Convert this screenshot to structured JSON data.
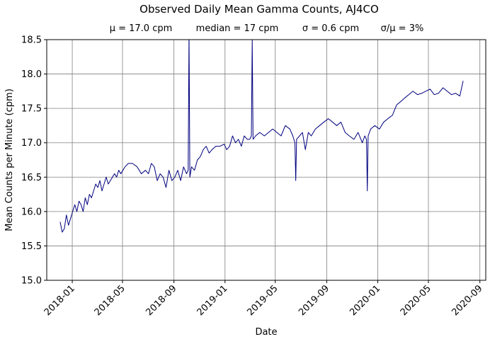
{
  "chart_data": {
    "type": "line",
    "title": "Observed Daily Mean Gamma Counts, AJ4CO",
    "subtitle": {
      "mean": "μ = 17.0 cpm",
      "median": "median = 17 cpm",
      "sigma": "σ = 0.6 cpm",
      "ratio": "σ/μ = 3%"
    },
    "xlabel": "Date",
    "ylabel": "Mean Counts per Minute (cpm)",
    "xlim": [
      "2017-11-01",
      "2020-09-15"
    ],
    "ylim": [
      15.0,
      18.5
    ],
    "x_ticks": [
      {
        "date": "2018-01-01",
        "label": "2018-01"
      },
      {
        "date": "2018-05-01",
        "label": "2018-05"
      },
      {
        "date": "2018-09-01",
        "label": "2018-09"
      },
      {
        "date": "2019-01-01",
        "label": "2019-01"
      },
      {
        "date": "2019-05-01",
        "label": "2019-05"
      },
      {
        "date": "2019-09-01",
        "label": "2019-09"
      },
      {
        "date": "2020-01-01",
        "label": "2020-01"
      },
      {
        "date": "2020-05-01",
        "label": "2020-05"
      },
      {
        "date": "2020-09-01",
        "label": "2020-09"
      }
    ],
    "y_ticks": [
      {
        "value": 15.0,
        "label": "15.0"
      },
      {
        "value": 15.5,
        "label": "15.5"
      },
      {
        "value": 16.0,
        "label": "16.0"
      },
      {
        "value": 16.5,
        "label": "16.5"
      },
      {
        "value": 17.0,
        "label": "17.0"
      },
      {
        "value": 17.5,
        "label": "17.5"
      },
      {
        "value": 18.0,
        "label": "18.0"
      },
      {
        "value": 18.5,
        "label": "18.5"
      }
    ],
    "grid": true,
    "line_color": "#00007f",
    "grid_color": "#808080",
    "series": [
      {
        "x": [
          "2017-12-03",
          "2017-12-08",
          "2017-12-13",
          "2017-12-18",
          "2017-12-23",
          "2017-12-28",
          "2018-01-02",
          "2018-01-07",
          "2018-01-12",
          "2018-01-17",
          "2018-01-22",
          "2018-01-27",
          "2018-02-01",
          "2018-02-06",
          "2018-02-11",
          "2018-02-16",
          "2018-02-21",
          "2018-02-26",
          "2018-03-03",
          "2018-03-08",
          "2018-03-13",
          "2018-03-18",
          "2018-03-23",
          "2018-03-28",
          "2018-04-02",
          "2018-04-07",
          "2018-04-12",
          "2018-04-17",
          "2018-04-22",
          "2018-04-27",
          "2018-05-02",
          "2018-05-07",
          "2018-05-15",
          "2018-05-25",
          "2018-06-05",
          "2018-06-15",
          "2018-06-25",
          "2018-07-02",
          "2018-07-09",
          "2018-07-16",
          "2018-07-23",
          "2018-07-30",
          "2018-08-06",
          "2018-08-13",
          "2018-08-20",
          "2018-08-27",
          "2018-09-03",
          "2018-09-10",
          "2018-09-17",
          "2018-09-24",
          "2018-10-01",
          "2018-10-05",
          "2018-10-07",
          "2018-10-09",
          "2018-10-13",
          "2018-10-20",
          "2018-10-27",
          "2018-11-03",
          "2018-11-10",
          "2018-11-17",
          "2018-11-24",
          "2018-12-01",
          "2018-12-10",
          "2018-12-20",
          "2018-12-30",
          "2019-01-05",
          "2019-01-12",
          "2019-01-19",
          "2019-01-26",
          "2019-02-02",
          "2019-02-09",
          "2019-02-16",
          "2019-02-23",
          "2019-03-01",
          "2019-03-05",
          "2019-03-07",
          "2019-03-09",
          "2019-03-15",
          "2019-03-25",
          "2019-04-05",
          "2019-04-15",
          "2019-04-25",
          "2019-05-05",
          "2019-05-15",
          "2019-05-25",
          "2019-06-05",
          "2019-06-12",
          "2019-06-17",
          "2019-06-19",
          "2019-06-21",
          "2019-06-28",
          "2019-07-05",
          "2019-07-12",
          "2019-07-19",
          "2019-07-26",
          "2019-08-05",
          "2019-08-15",
          "2019-08-25",
          "2019-09-05",
          "2019-09-15",
          "2019-09-25",
          "2019-10-05",
          "2019-10-15",
          "2019-10-25",
          "2019-11-05",
          "2019-11-15",
          "2019-11-25",
          "2019-12-01",
          "2019-12-05",
          "2019-12-07",
          "2019-12-09",
          "2019-12-15",
          "2019-12-25",
          "2020-01-05",
          "2020-01-15",
          "2020-01-25",
          "2020-02-05",
          "2020-02-15",
          "2020-02-25",
          "2020-03-05",
          "2020-03-15",
          "2020-03-25",
          "2020-04-05",
          "2020-04-15",
          "2020-04-25",
          "2020-05-05",
          "2020-05-15",
          "2020-05-25",
          "2020-06-05",
          "2020-06-15",
          "2020-06-25",
          "2020-07-05",
          "2020-07-15",
          "2020-07-23"
        ],
        "y": [
          15.85,
          15.7,
          15.75,
          15.95,
          15.8,
          15.9,
          16.0,
          16.1,
          16.0,
          16.15,
          16.1,
          16.0,
          16.2,
          16.1,
          16.25,
          16.2,
          16.3,
          16.4,
          16.35,
          16.45,
          16.3,
          16.4,
          16.5,
          16.4,
          16.45,
          16.5,
          16.55,
          16.5,
          16.6,
          16.55,
          16.6,
          16.65,
          16.7,
          16.7,
          16.65,
          16.55,
          16.6,
          16.55,
          16.7,
          16.65,
          16.45,
          16.55,
          16.5,
          16.35,
          16.6,
          16.45,
          16.5,
          16.6,
          16.45,
          16.65,
          16.55,
          16.6,
          18.6,
          16.5,
          16.65,
          16.6,
          16.75,
          16.8,
          16.9,
          16.95,
          16.85,
          16.9,
          16.95,
          16.95,
          16.98,
          16.9,
          16.95,
          17.1,
          17.0,
          17.05,
          16.95,
          17.1,
          17.05,
          17.05,
          17.1,
          18.5,
          17.05,
          17.1,
          17.15,
          17.1,
          17.15,
          17.2,
          17.15,
          17.1,
          17.25,
          17.2,
          17.1,
          17.0,
          16.45,
          17.05,
          17.1,
          17.15,
          16.9,
          17.15,
          17.1,
          17.2,
          17.25,
          17.3,
          17.35,
          17.3,
          17.25,
          17.3,
          17.15,
          17.1,
          17.05,
          17.15,
          17.0,
          17.1,
          17.05,
          16.3,
          17.1,
          17.2,
          17.25,
          17.2,
          17.3,
          17.35,
          17.4,
          17.55,
          17.6,
          17.65,
          17.7,
          17.75,
          17.7,
          17.72,
          17.75,
          17.78,
          17.7,
          17.72,
          17.8,
          17.75,
          17.7,
          17.72,
          17.68,
          17.9
        ]
      }
    ]
  }
}
